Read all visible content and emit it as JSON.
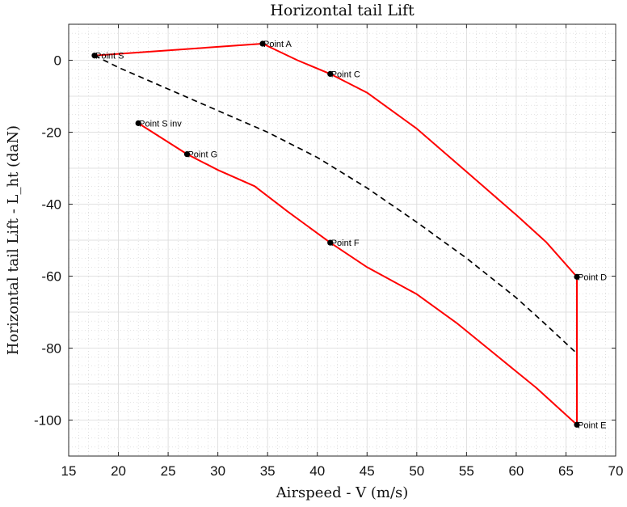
{
  "chart_data": {
    "type": "line",
    "title": "Horizontal tail Lift",
    "xlabel": "Airspeed - V (m/s)",
    "ylabel": "Horizontal tail Lift - L_ht (daN)",
    "xlim": [
      15,
      70
    ],
    "ylim": [
      -110,
      10
    ],
    "x_ticks": [
      15,
      20,
      25,
      30,
      35,
      40,
      45,
      50,
      55,
      60,
      65,
      70
    ],
    "y_ticks": [
      0,
      -20,
      -40,
      -60,
      -80,
      -100
    ],
    "grid": true,
    "minor_grid": true,
    "series": [
      {
        "color": "#ff0000",
        "style": "solid",
        "points": [
          [
            17.6,
            1.3
          ],
          [
            34.5,
            4.6
          ],
          [
            38,
            0
          ],
          [
            41.3,
            -3.8
          ],
          [
            45,
            -9
          ],
          [
            50,
            -19
          ],
          [
            55,
            -31
          ],
          [
            60,
            -43
          ],
          [
            63,
            -50.5
          ],
          [
            66.1,
            -60.2
          ],
          [
            66.1,
            -101.3
          ],
          [
            62,
            -91
          ],
          [
            58,
            -82
          ],
          [
            54,
            -73
          ],
          [
            50,
            -65
          ],
          [
            45,
            -57.5
          ],
          [
            41.3,
            -50.7
          ],
          [
            37,
            -42
          ],
          [
            33.7,
            -35
          ],
          [
            30,
            -30.5
          ],
          [
            26.9,
            -26.1
          ],
          [
            22,
            -17.5
          ]
        ]
      },
      {
        "color": "#000000",
        "style": "dashed",
        "points": [
          [
            17.6,
            1.3
          ],
          [
            20,
            -2
          ],
          [
            25,
            -8
          ],
          [
            30,
            -14
          ],
          [
            35,
            -20
          ],
          [
            40,
            -27
          ],
          [
            45,
            -35.5
          ],
          [
            50,
            -45
          ],
          [
            55,
            -55
          ],
          [
            60,
            -66
          ],
          [
            63,
            -73.5
          ],
          [
            66.1,
            -81.5
          ]
        ]
      }
    ],
    "points": [
      {
        "label": "Point S",
        "x": 17.6,
        "y": 1.3
      },
      {
        "label": "Point A",
        "x": 34.5,
        "y": 4.6
      },
      {
        "label": "Point C",
        "x": 41.3,
        "y": -3.8
      },
      {
        "label": "Point D",
        "x": 66.1,
        "y": -60.2
      },
      {
        "label": "Point E",
        "x": 66.1,
        "y": -101.3
      },
      {
        "label": "Point F",
        "x": 41.3,
        "y": -50.7
      },
      {
        "label": "Point G",
        "x": 26.9,
        "y": -26.1
      },
      {
        "label": "Point S inv",
        "x": 22,
        "y": -17.5
      }
    ]
  }
}
